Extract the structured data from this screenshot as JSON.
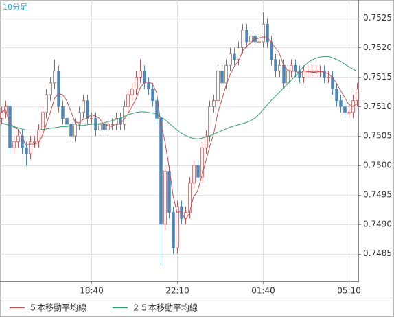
{
  "chart_data": {
    "type": "candlestick",
    "title": "10分足",
    "categories": [
      null,
      null,
      null,
      null,
      null,
      null,
      null,
      null,
      null,
      null,
      null,
      null,
      null,
      null,
      null,
      null,
      null,
      null,
      null,
      null,
      null,
      null,
      "18:40",
      null,
      null,
      null,
      null,
      null,
      null,
      null,
      null,
      null,
      null,
      null,
      null,
      null,
      null,
      null,
      null,
      null,
      null,
      null,
      null,
      "22:10",
      null,
      null,
      null,
      null,
      null,
      null,
      null,
      null,
      null,
      null,
      null,
      null,
      null,
      null,
      null,
      null,
      null,
      null,
      null,
      null,
      "01:40",
      null,
      null,
      null,
      null,
      null,
      null,
      null,
      null,
      null,
      null,
      null,
      null,
      null,
      null,
      null,
      null,
      null,
      null,
      null,
      null,
      "05:10",
      null,
      null
    ],
    "open": [
      0.7508,
      0.7509,
      0.751,
      0.7503,
      0.7504,
      0.7505,
      0.7503,
      0.7502,
      0.7504,
      0.7504,
      0.7506,
      0.7509,
      0.7512,
      0.7514,
      0.7516,
      0.751,
      0.7508,
      0.7507,
      0.7505,
      0.7507,
      0.7509,
      0.7511,
      0.7508,
      0.7508,
      0.7506,
      0.7507,
      0.7506,
      0.7507,
      0.7507,
      0.7508,
      0.7507,
      0.751,
      0.7512,
      0.7513,
      0.7515,
      0.7516,
      0.7514,
      0.7513,
      0.7511,
      0.7508,
      0.749,
      0.7499,
      0.7492,
      0.7486,
      0.7493,
      0.7491,
      0.7492,
      0.7497,
      0.75,
      0.7498,
      0.7503,
      0.7505,
      0.751,
      0.7511,
      0.7516,
      0.7514,
      0.7517,
      0.7519,
      0.7518,
      0.752,
      0.7523,
      0.7521,
      0.7522,
      0.7521,
      0.7521,
      0.7524,
      0.7521,
      0.7518,
      0.7516,
      0.7517,
      0.7514,
      0.7516,
      0.7517,
      0.7516,
      0.7515,
      0.7516,
      0.7516,
      0.7516,
      0.7516,
      0.7516,
      0.7515,
      0.7515,
      0.7513,
      0.7511,
      0.751,
      0.7509,
      0.7509,
      0.7511
    ],
    "high": [
      0.751,
      0.7511,
      0.7511,
      0.7505,
      0.7506,
      0.7506,
      0.7504,
      0.7505,
      0.7505,
      0.7507,
      0.751,
      0.7513,
      0.7515,
      0.7518,
      0.7517,
      0.7511,
      0.7509,
      0.7508,
      0.7508,
      0.751,
      0.7512,
      0.7512,
      0.7509,
      0.7509,
      0.7508,
      0.7508,
      0.7508,
      0.7508,
      0.7509,
      0.7509,
      0.7511,
      0.7513,
      0.7514,
      0.7516,
      0.7518,
      0.7517,
      0.7515,
      0.7514,
      0.7512,
      0.7509,
      0.75,
      0.75,
      0.7493,
      0.7494,
      0.7494,
      0.7493,
      0.7498,
      0.7501,
      0.7501,
      0.7504,
      0.7506,
      0.7511,
      0.7512,
      0.7517,
      0.7517,
      0.7518,
      0.752,
      0.752,
      0.7521,
      0.7524,
      0.7524,
      0.7523,
      0.7523,
      0.7522,
      0.7526,
      0.7525,
      0.7522,
      0.7519,
      0.7518,
      0.7518,
      0.7517,
      0.7518,
      0.7518,
      0.7517,
      0.7517,
      0.7517,
      0.7517,
      0.7517,
      0.7517,
      0.7517,
      0.7516,
      0.7516,
      0.7514,
      0.7512,
      0.7511,
      0.751,
      0.7512,
      0.7514
    ],
    "low": [
      0.7507,
      0.7508,
      0.7502,
      0.7502,
      0.7503,
      0.7502,
      0.75,
      0.7501,
      0.7503,
      0.7503,
      0.7505,
      0.7508,
      0.7511,
      0.7513,
      0.7509,
      0.7507,
      0.7506,
      0.7504,
      0.7504,
      0.7506,
      0.7508,
      0.7507,
      0.7507,
      0.7505,
      0.7505,
      0.7505,
      0.7505,
      0.7506,
      0.7506,
      0.7506,
      0.7506,
      0.7509,
      0.7511,
      0.7512,
      0.7514,
      0.7513,
      0.7512,
      0.751,
      0.7507,
      0.7483,
      0.7489,
      0.7491,
      0.7485,
      0.7485,
      0.749,
      0.749,
      0.7491,
      0.7496,
      0.7497,
      0.7497,
      0.7502,
      0.7504,
      0.7509,
      0.751,
      0.7513,
      0.7513,
      0.7516,
      0.7517,
      0.7517,
      0.7519,
      0.752,
      0.752,
      0.752,
      0.752,
      0.752,
      0.752,
      0.7517,
      0.7515,
      0.7515,
      0.7513,
      0.7513,
      0.7515,
      0.7515,
      0.7514,
      0.7514,
      0.7515,
      0.7515,
      0.7515,
      0.7515,
      0.7514,
      0.7514,
      0.7512,
      0.751,
      0.7509,
      0.7508,
      0.7508,
      0.7508,
      0.751
    ],
    "close": [
      0.7509,
      0.751,
      0.7503,
      0.7504,
      0.7505,
      0.7503,
      0.7502,
      0.7504,
      0.7504,
      0.7506,
      0.7509,
      0.7512,
      0.7514,
      0.7516,
      0.751,
      0.7508,
      0.7507,
      0.7505,
      0.7507,
      0.7509,
      0.7511,
      0.7508,
      0.7508,
      0.7506,
      0.7507,
      0.7506,
      0.7507,
      0.7507,
      0.7508,
      0.7507,
      0.751,
      0.7512,
      0.7513,
      0.7515,
      0.7516,
      0.7514,
      0.7513,
      0.7511,
      0.7508,
      0.749,
      0.7499,
      0.7492,
      0.7486,
      0.7493,
      0.7491,
      0.7492,
      0.7497,
      0.75,
      0.7498,
      0.7503,
      0.7505,
      0.751,
      0.7511,
      0.7516,
      0.7514,
      0.7517,
      0.7519,
      0.7518,
      0.752,
      0.7523,
      0.7521,
      0.7522,
      0.7521,
      0.7521,
      0.7524,
      0.7521,
      0.7518,
      0.7516,
      0.7517,
      0.7514,
      0.7516,
      0.7517,
      0.7516,
      0.7515,
      0.7516,
      0.7516,
      0.7516,
      0.7516,
      0.7516,
      0.7515,
      0.7515,
      0.7513,
      0.7511,
      0.751,
      0.7509,
      0.7509,
      0.7511,
      0.7513
    ],
    "up_color": "#b55a5a",
    "down_color": "#4f86b8",
    "series": [
      {
        "name": "５本移動平均線",
        "color": "#c0504d",
        "values": [
          0.7509,
          0.75095,
          0.75073,
          0.75065,
          0.75062,
          0.7505,
          0.75034,
          0.75036,
          0.75036,
          0.75038,
          0.7505,
          0.7507,
          0.7509,
          0.75114,
          0.75122,
          0.7512,
          0.7511,
          0.75092,
          0.75074,
          0.75072,
          0.75078,
          0.7508,
          0.75086,
          0.75084,
          0.7508,
          0.7507,
          0.75068,
          0.75066,
          0.7507,
          0.7507,
          0.75078,
          0.75088,
          0.751,
          0.75114,
          0.75132,
          0.7514,
          0.75142,
          0.75138,
          0.75124,
          0.75072,
          0.75042,
          0.75,
          0.7495,
          0.7492,
          0.74922,
          0.74908,
          0.74918,
          0.74946,
          0.74956,
          0.7498,
          0.75006,
          0.75032,
          0.75054,
          0.7509,
          0.75112,
          0.75136,
          0.75154,
          0.75168,
          0.75176,
          0.75194,
          0.75202,
          0.75208,
          0.75214,
          0.75216,
          0.75218,
          0.75218,
          0.7521,
          0.752,
          0.75192,
          0.75172,
          0.75162,
          0.7516,
          0.7516,
          0.75156,
          0.7516,
          0.7516,
          0.75158,
          0.75158,
          0.7516,
          0.75158,
          0.75156,
          0.7515,
          0.7514,
          0.75128,
          0.75116,
          0.75104,
          0.751,
          0.75104
        ]
      },
      {
        "name": "２５本移動平均線",
        "color": "#2e9e6a",
        "values": [
          0.75072,
          0.7507,
          0.75068,
          0.75066,
          0.75064,
          0.75062,
          0.7506,
          0.7506,
          0.7506,
          0.7506,
          0.75061,
          0.75062,
          0.75063,
          0.75064,
          0.75065,
          0.75066,
          0.75066,
          0.75067,
          0.75067,
          0.75068,
          0.75068,
          0.75069,
          0.7507,
          0.7507,
          0.75071,
          0.75072,
          0.75074,
          0.75076,
          0.75078,
          0.7508,
          0.75083,
          0.75086,
          0.75088,
          0.7509,
          0.75091,
          0.75091,
          0.7509,
          0.75089,
          0.75087,
          0.75082,
          0.75078,
          0.75072,
          0.75066,
          0.7506,
          0.75055,
          0.75051,
          0.75048,
          0.75046,
          0.75045,
          0.75046,
          0.75048,
          0.7505,
          0.75053,
          0.75056,
          0.75059,
          0.75062,
          0.75065,
          0.75067,
          0.75069,
          0.75071,
          0.75073,
          0.75076,
          0.7508,
          0.75086,
          0.75094,
          0.75102,
          0.7511,
          0.75117,
          0.75124,
          0.75131,
          0.75138,
          0.75145,
          0.75152,
          0.7516,
          0.75168,
          0.75174,
          0.75179,
          0.75182,
          0.75184,
          0.75185,
          0.75185,
          0.75183,
          0.7518,
          0.75177,
          0.75172,
          0.75168,
          0.75164,
          0.7516
        ]
      }
    ],
    "ylim": [
      0.74803,
      0.75281
    ],
    "yticks": [
      0.7525,
      {
        "value": 0.752,
        "label": "0.7520"
      },
      0.7515,
      {
        "value": 0.751,
        "label": "0.7510"
      },
      0.7505,
      {
        "value": 0.75,
        "label": "0.7500"
      },
      0.7495,
      {
        "value": 0.749,
        "label": "0.7490"
      },
      0.7485
    ],
    "grid": true
  }
}
